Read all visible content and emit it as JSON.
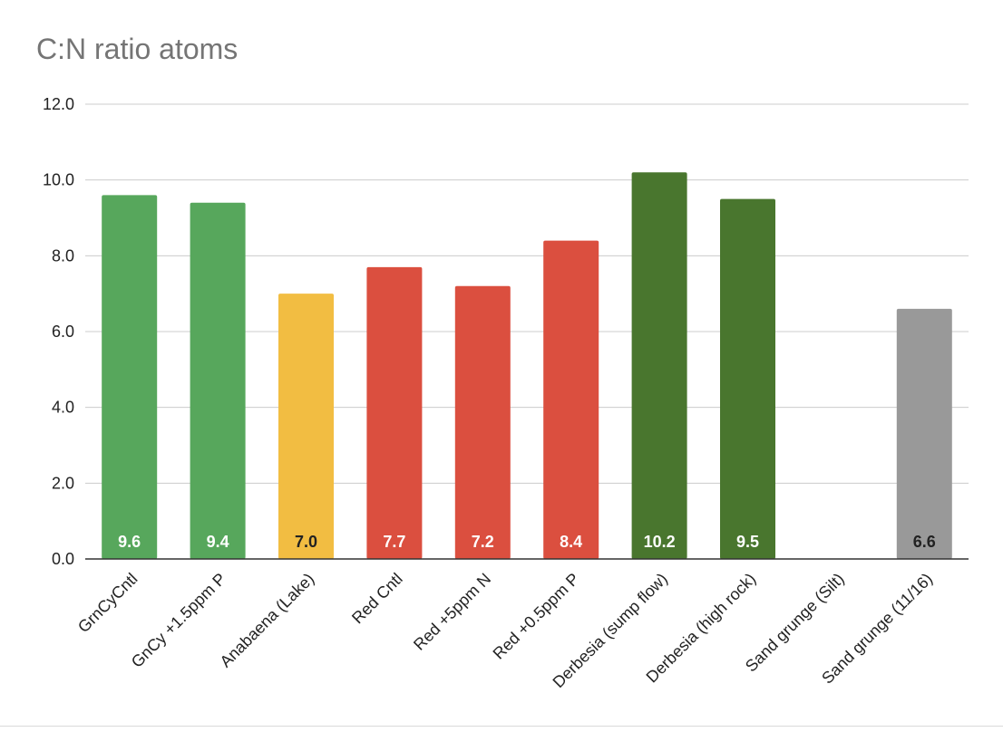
{
  "chart_data": {
    "type": "bar",
    "title": "C:N ratio atoms",
    "xlabel": "",
    "ylabel": "",
    "ylim": [
      0,
      12
    ],
    "yticks": [
      0,
      2,
      4,
      6,
      8,
      10,
      12
    ],
    "ytick_labels": [
      "0.0",
      "2.0",
      "4.0",
      "6.0",
      "8.0",
      "10.0",
      "12.0"
    ],
    "grid": true,
    "legend": "none",
    "categories": [
      "GrnCyCntl",
      "GnCy +1.5ppm P",
      "Anabaena (Lake)",
      "Red Cntl",
      "Red  +5ppm N",
      "Red +0.5ppm P",
      "Derbesia (sump flow)",
      "Derbesia (high rock)",
      "Sand grunge (Silt)",
      "Sand grunge (11/16)"
    ],
    "values": [
      9.6,
      9.4,
      7.0,
      7.7,
      7.2,
      8.4,
      10.2,
      9.5,
      null,
      6.6
    ],
    "data_labels": [
      "9.6",
      "9.4",
      "7.0",
      "7.7",
      "7.2",
      "8.4",
      "10.2",
      "9.5",
      "",
      "6.6"
    ],
    "bar_colors": [
      "#57a75c",
      "#57a75c",
      "#f2bd42",
      "#db4f3f",
      "#db4f3f",
      "#db4f3f",
      "#49762e",
      "#49762e",
      "#999999",
      "#999999"
    ],
    "label_colors": [
      "#ffffff",
      "#ffffff",
      "#222222",
      "#ffffff",
      "#ffffff",
      "#ffffff",
      "#ffffff",
      "#ffffff",
      "#222222",
      "#222222"
    ]
  }
}
